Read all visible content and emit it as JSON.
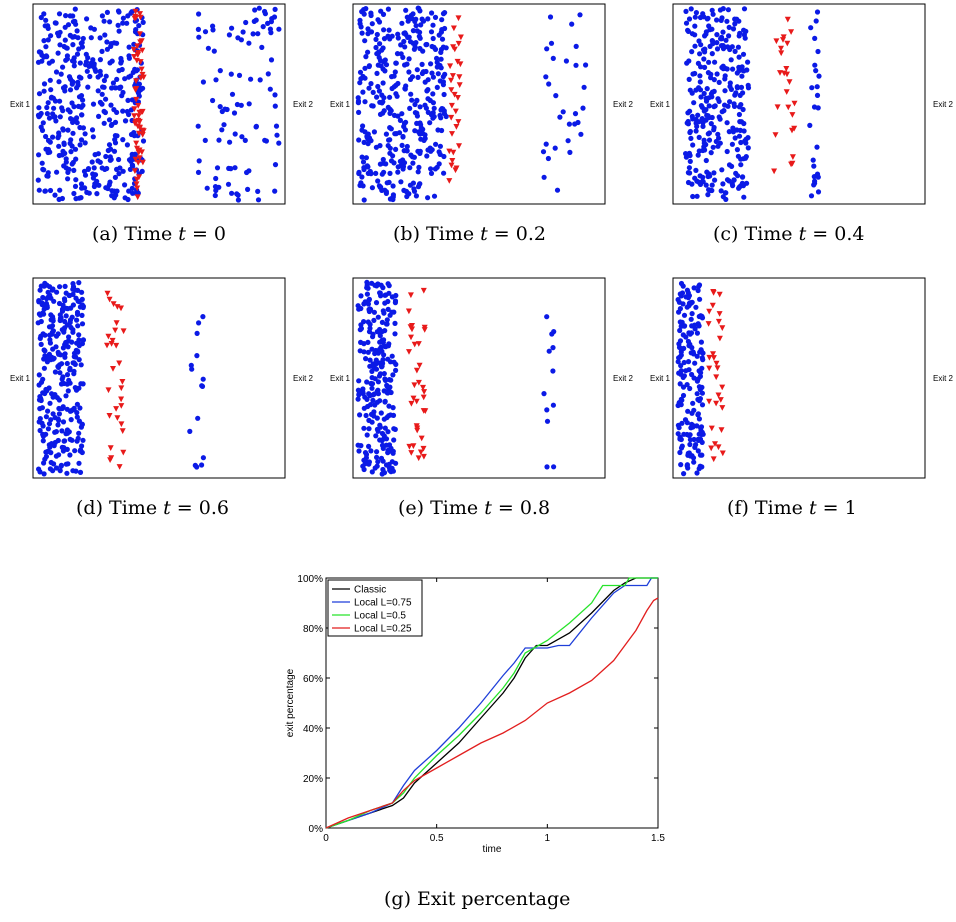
{
  "scatter_labels": {
    "exit1": "Exit 1",
    "exit2": "Exit 2"
  },
  "colors": {
    "blue": "#0b1ae6",
    "red": "#e81a1a",
    "classic": "#000000",
    "l075": "#1f3fd9",
    "l05": "#27e32b",
    "l025": "#e21f1f"
  },
  "captions": [
    {
      "tag": "(a)",
      "prefix": "Time",
      "var": "t",
      "value": "= 0"
    },
    {
      "tag": "(b)",
      "prefix": "Time",
      "var": "t",
      "value": "= 0.2"
    },
    {
      "tag": "(c)",
      "prefix": "Time",
      "var": "t",
      "value": "= 0.4"
    },
    {
      "tag": "(d)",
      "prefix": "Time",
      "var": "t",
      "value": "= 0.6"
    },
    {
      "tag": "(e)",
      "prefix": "Time",
      "var": "t",
      "value": "= 0.8"
    },
    {
      "tag": "(f)",
      "prefix": "Time",
      "var": "t",
      "value": "= 1"
    },
    {
      "tag": "(g)",
      "prefix": "Exit percentage",
      "var": "",
      "value": ""
    }
  ],
  "chart_data": [
    {
      "type": "scatter",
      "time": 0,
      "clusters": [
        {
          "marker": "circle",
          "color": "blue",
          "x": [
            0.02,
            0.44
          ],
          "y": [
            0.02,
            0.98
          ],
          "count": 420
        },
        {
          "marker": "triangle",
          "color": "red",
          "x": [
            0.4,
            0.44
          ],
          "y": [
            0.02,
            0.98
          ],
          "count": 60
        },
        {
          "marker": "circle",
          "color": "blue",
          "x": [
            0.65,
            0.98
          ],
          "y": [
            0.02,
            0.98
          ],
          "count": 95
        }
      ]
    },
    {
      "type": "scatter",
      "time": 0.2,
      "clusters": [
        {
          "marker": "circle",
          "color": "blue",
          "x": [
            0.02,
            0.37
          ],
          "y": [
            0.02,
            0.98
          ],
          "count": 380
        },
        {
          "marker": "triangle",
          "color": "red",
          "x": [
            0.38,
            0.43
          ],
          "y": [
            0.1,
            0.95
          ],
          "count": 30
        },
        {
          "marker": "circle",
          "color": "blue",
          "x": [
            0.75,
            0.95
          ],
          "y": [
            0.05,
            0.95
          ],
          "count": 30
        }
      ]
    },
    {
      "type": "scatter",
      "time": 0.4,
      "clusters": [
        {
          "marker": "circle",
          "color": "blue",
          "x": [
            0.05,
            0.3
          ],
          "y": [
            0.02,
            0.98
          ],
          "count": 300
        },
        {
          "marker": "triangle",
          "color": "red",
          "x": [
            0.4,
            0.5
          ],
          "y": [
            0.15,
            0.95
          ],
          "count": 25
        },
        {
          "marker": "circle",
          "color": "blue",
          "x": [
            0.54,
            0.58
          ],
          "y": [
            0.02,
            0.98
          ],
          "count": 25
        }
      ]
    },
    {
      "type": "scatter",
      "time": 0.6,
      "clusters": [
        {
          "marker": "circle",
          "color": "blue",
          "x": [
            0.02,
            0.2
          ],
          "y": [
            0.02,
            0.98
          ],
          "count": 300
        },
        {
          "marker": "triangle",
          "color": "red",
          "x": [
            0.29,
            0.36
          ],
          "y": [
            0.05,
            0.95
          ],
          "count": 30
        },
        {
          "marker": "circle",
          "color": "blue",
          "x": [
            0.62,
            0.68
          ],
          "y": [
            0.05,
            0.95
          ],
          "count": 15
        }
      ]
    },
    {
      "type": "scatter",
      "time": 0.8,
      "clusters": [
        {
          "marker": "circle",
          "color": "blue",
          "x": [
            0.02,
            0.17
          ],
          "y": [
            0.02,
            0.98
          ],
          "count": 250
        },
        {
          "marker": "triangle",
          "color": "red",
          "x": [
            0.22,
            0.3
          ],
          "y": [
            0.05,
            0.95
          ],
          "count": 35
        },
        {
          "marker": "circle",
          "color": "blue",
          "x": [
            0.75,
            0.8
          ],
          "y": [
            0.05,
            0.95
          ],
          "count": 12
        }
      ]
    },
    {
      "type": "scatter",
      "time": 1,
      "clusters": [
        {
          "marker": "circle",
          "color": "blue",
          "x": [
            0.02,
            0.12
          ],
          "y": [
            0.02,
            0.98
          ],
          "count": 180
        },
        {
          "marker": "triangle",
          "color": "red",
          "x": [
            0.14,
            0.2
          ],
          "y": [
            0.05,
            0.95
          ],
          "count": 30
        }
      ]
    },
    {
      "type": "line",
      "xlabel": "time",
      "ylabel": "exit percentage",
      "xlim": [
        0,
        1.5
      ],
      "ylim": [
        0,
        100
      ],
      "xticks": [
        "0",
        "0.5",
        "1",
        "1.5"
      ],
      "yticks": [
        "0%",
        "20%",
        "40%",
        "60%",
        "80%",
        "100%"
      ],
      "legend_position": "top-left",
      "series": [
        {
          "name": "Classic",
          "color": "classic",
          "points": [
            [
              0,
              0
            ],
            [
              0.1,
              3
            ],
            [
              0.2,
              6
            ],
            [
              0.3,
              9
            ],
            [
              0.35,
              12
            ],
            [
              0.4,
              18
            ],
            [
              0.5,
              26
            ],
            [
              0.6,
              34
            ],
            [
              0.7,
              44
            ],
            [
              0.8,
              54
            ],
            [
              0.85,
              60
            ],
            [
              0.9,
              68
            ],
            [
              0.95,
              73
            ],
            [
              1.0,
              73
            ],
            [
              1.1,
              78
            ],
            [
              1.2,
              86
            ],
            [
              1.3,
              95
            ],
            [
              1.35,
              98
            ],
            [
              1.4,
              100
            ],
            [
              1.5,
              100
            ]
          ]
        },
        {
          "name": "Local L=0.75",
          "color": "l075",
          "points": [
            [
              0,
              0
            ],
            [
              0.1,
              3
            ],
            [
              0.2,
              6
            ],
            [
              0.3,
              10
            ],
            [
              0.35,
              17
            ],
            [
              0.4,
              23
            ],
            [
              0.5,
              31
            ],
            [
              0.6,
              40
            ],
            [
              0.7,
              50
            ],
            [
              0.8,
              61
            ],
            [
              0.85,
              66
            ],
            [
              0.9,
              72
            ],
            [
              1.0,
              72
            ],
            [
              1.05,
              73
            ],
            [
              1.1,
              73
            ],
            [
              1.2,
              84
            ],
            [
              1.3,
              94
            ],
            [
              1.35,
              97
            ],
            [
              1.45,
              97
            ],
            [
              1.47,
              100
            ],
            [
              1.5,
              100
            ]
          ]
        },
        {
          "name": "Local L=0.5",
          "color": "l05",
          "points": [
            [
              0,
              0
            ],
            [
              0.1,
              3
            ],
            [
              0.2,
              7
            ],
            [
              0.3,
              10
            ],
            [
              0.35,
              14
            ],
            [
              0.4,
              20
            ],
            [
              0.5,
              29
            ],
            [
              0.6,
              37
            ],
            [
              0.7,
              46
            ],
            [
              0.8,
              56
            ],
            [
              0.85,
              62
            ],
            [
              0.9,
              70
            ],
            [
              1.0,
              75
            ],
            [
              1.1,
              82
            ],
            [
              1.2,
              90
            ],
            [
              1.25,
              97
            ],
            [
              1.3,
              97
            ],
            [
              1.35,
              97
            ],
            [
              1.37,
              100
            ],
            [
              1.5,
              100
            ]
          ]
        },
        {
          "name": "Local L=0.25",
          "color": "l025",
          "points": [
            [
              0,
              0
            ],
            [
              0.1,
              4
            ],
            [
              0.2,
              7
            ],
            [
              0.3,
              10
            ],
            [
              0.35,
              15
            ],
            [
              0.4,
              19
            ],
            [
              0.5,
              24
            ],
            [
              0.6,
              29
            ],
            [
              0.7,
              34
            ],
            [
              0.8,
              38
            ],
            [
              0.9,
              43
            ],
            [
              1.0,
              50
            ],
            [
              1.1,
              54
            ],
            [
              1.2,
              59
            ],
            [
              1.3,
              67
            ],
            [
              1.4,
              79
            ],
            [
              1.45,
              87
            ],
            [
              1.48,
              91
            ],
            [
              1.5,
              92
            ]
          ]
        }
      ]
    }
  ]
}
